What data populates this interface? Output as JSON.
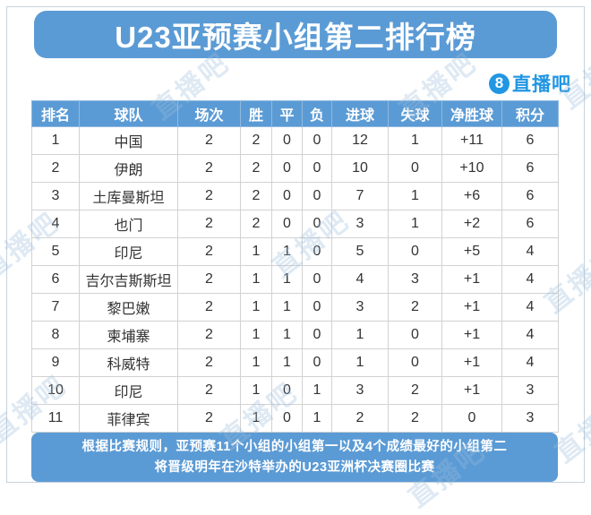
{
  "header": {
    "title": "U23亚预赛小组第二排行榜",
    "logo_badge": "8",
    "logo_text": "直播吧"
  },
  "watermark_text": "直播吧",
  "footer": {
    "line1": "根据比赛规则，亚预赛11个小组的小组第一以及4个成绩最好的小组第二",
    "line2": "将晋级明年在沙特举办的U23亚洲杯决赛圈比赛"
  },
  "colors": {
    "primary_blue": "#5B9BD5",
    "logo_blue": "#2196E3",
    "cell_border": "#d2d2d2",
    "text_dark": "#333333",
    "watermark": "#9cbedd"
  },
  "chart_data": {
    "type": "table",
    "title": "U23亚预赛小组第二排行榜",
    "columns": [
      "排名",
      "球队",
      "场次",
      "胜",
      "平",
      "负",
      "进球",
      "失球",
      "净胜球",
      "积分"
    ],
    "rows": [
      [
        "1",
        "中国",
        "2",
        "2",
        "0",
        "0",
        "12",
        "1",
        "+11",
        "6"
      ],
      [
        "2",
        "伊朗",
        "2",
        "2",
        "0",
        "0",
        "10",
        "0",
        "+10",
        "6"
      ],
      [
        "3",
        "土库曼斯坦",
        "2",
        "2",
        "0",
        "0",
        "7",
        "1",
        "+6",
        "6"
      ],
      [
        "4",
        "也门",
        "2",
        "2",
        "0",
        "0",
        "3",
        "1",
        "+2",
        "6"
      ],
      [
        "5",
        "印尼",
        "2",
        "1",
        "1",
        "0",
        "5",
        "0",
        "+5",
        "4"
      ],
      [
        "6",
        "吉尔吉斯斯坦",
        "2",
        "1",
        "1",
        "0",
        "4",
        "3",
        "+1",
        "4"
      ],
      [
        "7",
        "黎巴嫩",
        "2",
        "1",
        "1",
        "0",
        "3",
        "2",
        "+1",
        "4"
      ],
      [
        "8",
        "柬埔寨",
        "2",
        "1",
        "1",
        "0",
        "1",
        "0",
        "+1",
        "4"
      ],
      [
        "9",
        "科威特",
        "2",
        "1",
        "1",
        "0",
        "1",
        "0",
        "+1",
        "4"
      ],
      [
        "10",
        "印尼",
        "2",
        "1",
        "0",
        "1",
        "3",
        "2",
        "+1",
        "3"
      ],
      [
        "11",
        "菲律宾",
        "2",
        "1",
        "0",
        "1",
        "2",
        "2",
        "0",
        "3"
      ]
    ]
  }
}
